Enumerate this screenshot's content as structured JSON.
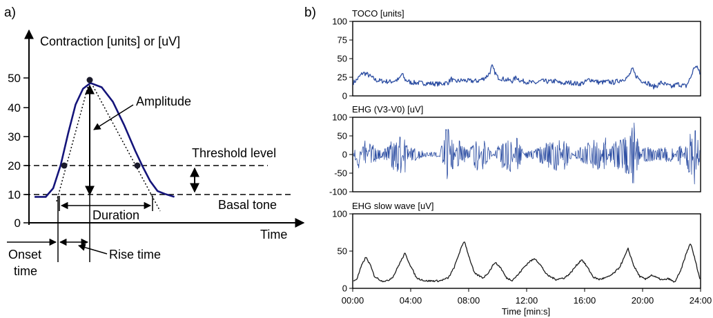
{
  "panel_a": {
    "label": "a)",
    "ylabel": "Contraction [units] or [uV]",
    "xlabel": "Time",
    "yticks": [
      "0",
      "10",
      "20",
      "30",
      "40",
      "50"
    ],
    "annotations": {
      "amplitude": "Amplitude",
      "threshold": "Threshold  level",
      "basal": "Basal  tone",
      "duration": "Duration",
      "onset_1": "Onset",
      "onset_2": "time",
      "rise": "Rise  time"
    }
  },
  "panel_b": {
    "label": "b)",
    "xlabel": "Time [min:s]",
    "xticks": [
      "00:00",
      "04:00",
      "08:00",
      "12:00",
      "16:00",
      "20:00",
      "24:00"
    ]
  },
  "colors": {
    "signal": "#2e4fa3",
    "slow": "#1a1a1a",
    "curve": "#14147a",
    "axis": "#000000"
  },
  "chart_data": [
    {
      "type": "line",
      "title": "",
      "xlabel": "Time",
      "ylabel": "Contraction [units] or [uV]",
      "ylim": [
        0,
        55
      ],
      "series": [
        {
          "values": [
            [
              0.3,
              9
            ],
            [
              0.9,
              9
            ],
            [
              1.3,
              12
            ],
            [
              1.7,
              20
            ],
            [
              2.1,
              31
            ],
            [
              2.5,
              41
            ],
            [
              2.9,
              46.5
            ],
            [
              3.3,
              48.5
            ],
            [
              3.9,
              47
            ],
            [
              4.5,
              42
            ],
            [
              5.1,
              34
            ],
            [
              5.7,
              25
            ],
            [
              6.1,
              19.5
            ],
            [
              6.5,
              14.5
            ],
            [
              6.9,
              11
            ],
            [
              7.3,
              10
            ],
            [
              7.8,
              9
            ]
          ]
        }
      ],
      "annotations": {
        "threshold_level": 20,
        "basal_tone": 10,
        "peak": 48.5
      }
    },
    {
      "type": "line",
      "title": "TOCO [units]",
      "xlabel": "Time [min:s]",
      "ylim": [
        0,
        100
      ],
      "yticks": [
        0,
        25,
        50,
        75,
        100
      ],
      "series": [
        {
          "values": [
            [
              0,
              17
            ],
            [
              0.3,
              22
            ],
            [
              0.7,
              31
            ],
            [
              1.0,
              29
            ],
            [
              1.3,
              25
            ],
            [
              1.6,
              21
            ],
            [
              2,
              20
            ],
            [
              2.6,
              19
            ],
            [
              3.2,
              22
            ],
            [
              3.4,
              30
            ],
            [
              3.6,
              22
            ],
            [
              4,
              18
            ],
            [
              5,
              17
            ],
            [
              6,
              16
            ],
            [
              6.6,
              18
            ],
            [
              6.8,
              23
            ],
            [
              7,
              19
            ],
            [
              7.6,
              21
            ],
            [
              8,
              20
            ],
            [
              8.6,
              20
            ],
            [
              9,
              23
            ],
            [
              9.3,
              27
            ],
            [
              9.5,
              33
            ],
            [
              9.6,
              40
            ],
            [
              9.8,
              32
            ],
            [
              10,
              25
            ],
            [
              10.5,
              22
            ],
            [
              11,
              20
            ],
            [
              11.3,
              25
            ],
            [
              11.6,
              20
            ],
            [
              12,
              19
            ],
            [
              12.6,
              17
            ],
            [
              13,
              20
            ],
            [
              13.6,
              19
            ],
            [
              14,
              20
            ],
            [
              14.3,
              17
            ],
            [
              14.6,
              17
            ],
            [
              15,
              18
            ],
            [
              15.6,
              16
            ],
            [
              16,
              18
            ],
            [
              16.3,
              22
            ],
            [
              16.6,
              21
            ],
            [
              17,
              18
            ],
            [
              17.6,
              19
            ],
            [
              18,
              18
            ],
            [
              18.6,
              22
            ],
            [
              19,
              25
            ],
            [
              19.3,
              36
            ],
            [
              19.5,
              28
            ],
            [
              19.8,
              22
            ],
            [
              20,
              20
            ],
            [
              20.4,
              17
            ],
            [
              20.7,
              12
            ],
            [
              21,
              14
            ],
            [
              21.3,
              18
            ],
            [
              21.6,
              15
            ],
            [
              22,
              12
            ],
            [
              22.4,
              16
            ],
            [
              22.8,
              14
            ],
            [
              23,
              13
            ],
            [
              23.3,
              24
            ],
            [
              23.6,
              40
            ],
            [
              23.9,
              35
            ],
            [
              24,
              22
            ]
          ]
        }
      ]
    },
    {
      "type": "line",
      "title": "EHG (V3-V0) [uV]",
      "xlabel": "Time [min:s]",
      "ylim": [
        -100,
        100
      ],
      "yticks": [
        -100,
        -50,
        0,
        50,
        100
      ],
      "series": [
        {
          "values": [
            [
              0,
              0
            ],
            [
              0.4,
              40
            ],
            [
              0.8,
              -45
            ],
            [
              1.2,
              30
            ],
            [
              2,
              8
            ],
            [
              3.3,
              55
            ],
            [
              3.6,
              -50
            ],
            [
              4,
              20
            ],
            [
              5,
              6
            ],
            [
              6,
              6
            ],
            [
              6.4,
              60
            ],
            [
              6.6,
              95
            ],
            [
              6.8,
              -70
            ],
            [
              7.2,
              40
            ],
            [
              8,
              10
            ],
            [
              8.6,
              45
            ],
            [
              9,
              -40
            ],
            [
              9.8,
              8
            ],
            [
              10.4,
              40
            ],
            [
              10.9,
              45
            ],
            [
              11.3,
              -45
            ],
            [
              12,
              12
            ],
            [
              12.4,
              10
            ],
            [
              14.2,
              45
            ],
            [
              14.6,
              -40
            ],
            [
              15.4,
              12
            ],
            [
              17,
              45
            ],
            [
              17.4,
              -50
            ],
            [
              17.8,
              25
            ],
            [
              19.2,
              55
            ],
            [
              19.4,
              90
            ],
            [
              19.6,
              -60
            ],
            [
              20,
              20
            ],
            [
              21,
              15
            ],
            [
              22,
              20
            ],
            [
              22.6,
              -30
            ],
            [
              23.4,
              75
            ],
            [
              23.6,
              -95
            ],
            [
              23.8,
              40
            ],
            [
              24,
              10
            ]
          ]
        }
      ]
    },
    {
      "type": "line",
      "title": "EHG slow wave [uV]",
      "xlabel": "Time [min:s]",
      "ylim": [
        0,
        100
      ],
      "yticks": [
        0,
        50,
        100
      ],
      "series": [
        {
          "values": [
            [
              0,
              9
            ],
            [
              0.3,
              13
            ],
            [
              0.6,
              30
            ],
            [
              0.9,
              42
            ],
            [
              1.2,
              32
            ],
            [
              1.5,
              16
            ],
            [
              2,
              10
            ],
            [
              2.4,
              10
            ],
            [
              2.8,
              16
            ],
            [
              3.2,
              32
            ],
            [
              3.6,
              47
            ],
            [
              4,
              30
            ],
            [
              4.4,
              14
            ],
            [
              5,
              10
            ],
            [
              6,
              10
            ],
            [
              6.6,
              14
            ],
            [
              7,
              28
            ],
            [
              7.4,
              50
            ],
            [
              7.7,
              64
            ],
            [
              8,
              44
            ],
            [
              8.4,
              20
            ],
            [
              9,
              14
            ],
            [
              9.4,
              22
            ],
            [
              9.8,
              35
            ],
            [
              10.2,
              28
            ],
            [
              10.6,
              14
            ],
            [
              11,
              11
            ],
            [
              11.4,
              18
            ],
            [
              11.8,
              28
            ],
            [
              12.2,
              36
            ],
            [
              12.6,
              40
            ],
            [
              13,
              30
            ],
            [
              13.4,
              18
            ],
            [
              14,
              12
            ],
            [
              14.6,
              14
            ],
            [
              15,
              20
            ],
            [
              15.4,
              30
            ],
            [
              15.8,
              39
            ],
            [
              16.2,
              28
            ],
            [
              16.6,
              15
            ],
            [
              17,
              12
            ],
            [
              17.6,
              15
            ],
            [
              18,
              20
            ],
            [
              18.4,
              28
            ],
            [
              18.7,
              40
            ],
            [
              19,
              53
            ],
            [
              19.4,
              30
            ],
            [
              19.8,
              16
            ],
            [
              20.2,
              12
            ],
            [
              20.6,
              18
            ],
            [
              21,
              14
            ],
            [
              21.4,
              11
            ],
            [
              21.8,
              13
            ],
            [
              22.2,
              8
            ],
            [
              22.6,
              22
            ],
            [
              23,
              46
            ],
            [
              23.3,
              61
            ],
            [
              23.6,
              40
            ],
            [
              24,
              9
            ]
          ]
        }
      ]
    }
  ]
}
